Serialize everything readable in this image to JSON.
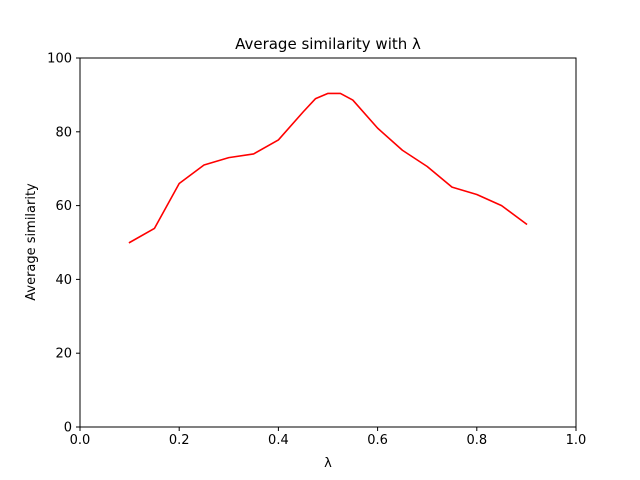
{
  "chart_data": {
    "type": "line",
    "title": "Average similarity with λ",
    "xlabel": "λ",
    "ylabel": "Average similarity",
    "xlim": [
      0.0,
      1.0
    ],
    "ylim": [
      0,
      100
    ],
    "x_ticks": [
      0.0,
      0.2,
      0.4,
      0.6,
      0.8,
      1.0
    ],
    "x_tick_labels": [
      "0.0",
      "0.2",
      "0.4",
      "0.6",
      "0.8",
      "1.0"
    ],
    "y_ticks": [
      0,
      20,
      40,
      60,
      80,
      100
    ],
    "y_tick_labels": [
      "0",
      "20",
      "40",
      "60",
      "80",
      "100"
    ],
    "grid": false,
    "legend": "none",
    "series": [
      {
        "color": "#ff0000",
        "x": [
          0.1,
          0.15,
          0.2,
          0.25,
          0.3,
          0.35,
          0.4,
          0.45,
          0.475,
          0.5,
          0.525,
          0.55,
          0.6,
          0.65,
          0.7,
          0.75,
          0.8,
          0.85,
          0.9
        ],
        "y": [
          50.0,
          53.8,
          66.0,
          71.0,
          73.0,
          74.0,
          77.8,
          85.4,
          89.0,
          90.4,
          90.4,
          88.6,
          81.0,
          75.0,
          70.6,
          65.0,
          63.0,
          60.0,
          55.0
        ]
      }
    ]
  }
}
